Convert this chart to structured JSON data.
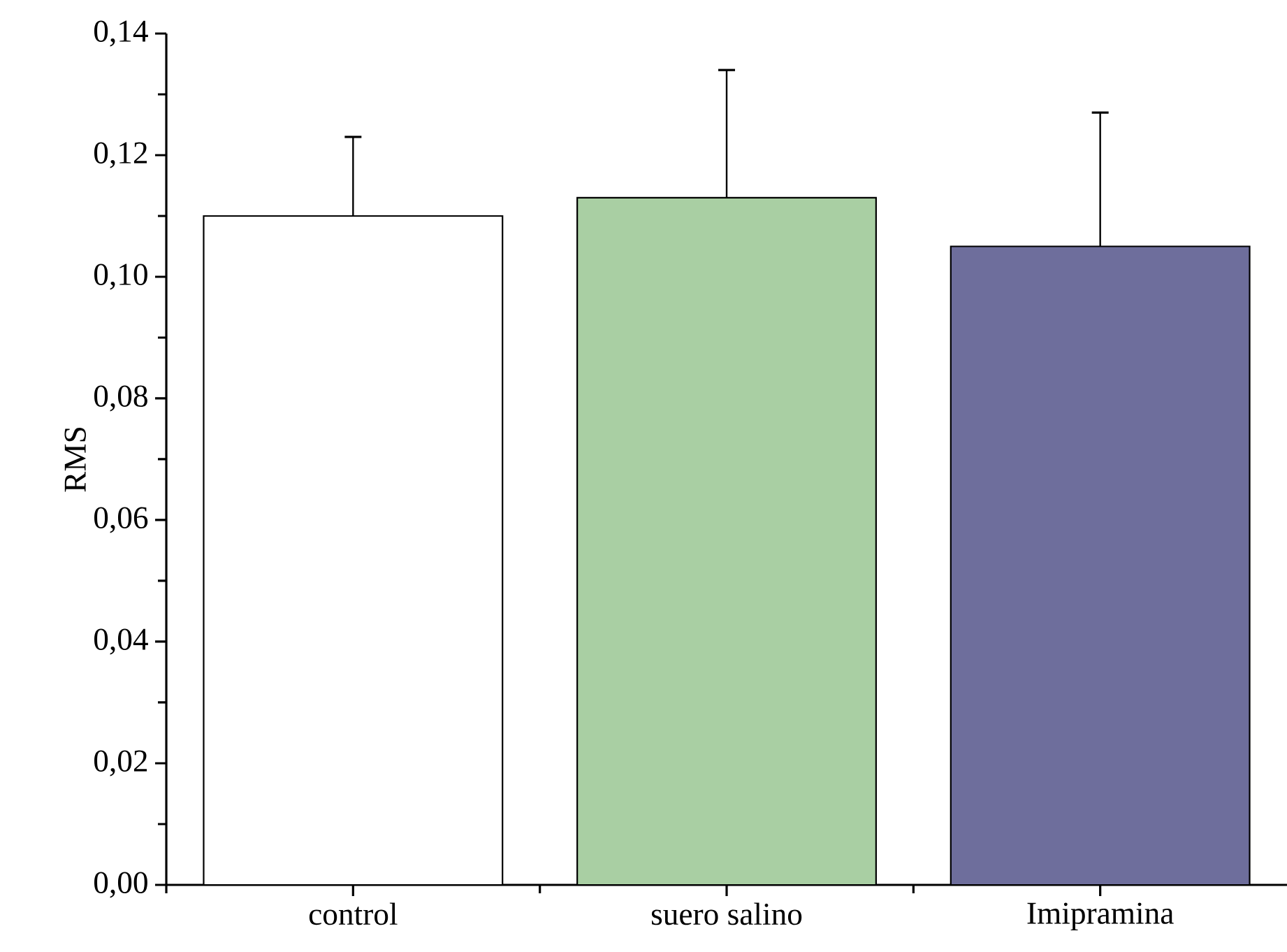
{
  "chart_data": {
    "type": "bar",
    "ylabel": "RMS",
    "categories": [
      "control",
      "suero salino",
      "Imipramina"
    ],
    "values": [
      0.11,
      0.113,
      0.105
    ],
    "errors": [
      [
        0.11,
        0.123
      ],
      [
        0.113,
        0.134
      ],
      [
        0.105,
        0.127
      ]
    ],
    "colors": [
      "#ffffff",
      "#a9cfa3",
      "#6e6e9c"
    ],
    "ylim": [
      0,
      0.14
    ],
    "yticks": [
      {
        "value": 0,
        "label": "0,00"
      },
      {
        "value": 0.02,
        "label": "0,02"
      },
      {
        "value": 0.04,
        "label": "0,04"
      },
      {
        "value": 0.06,
        "label": "0,06"
      },
      {
        "value": 0.08,
        "label": "0,08"
      },
      {
        "value": 0.1,
        "label": "0,10"
      },
      {
        "value": 0.12,
        "label": "0,12"
      },
      {
        "value": 0.14,
        "label": "0,14"
      }
    ],
    "grid": false
  }
}
